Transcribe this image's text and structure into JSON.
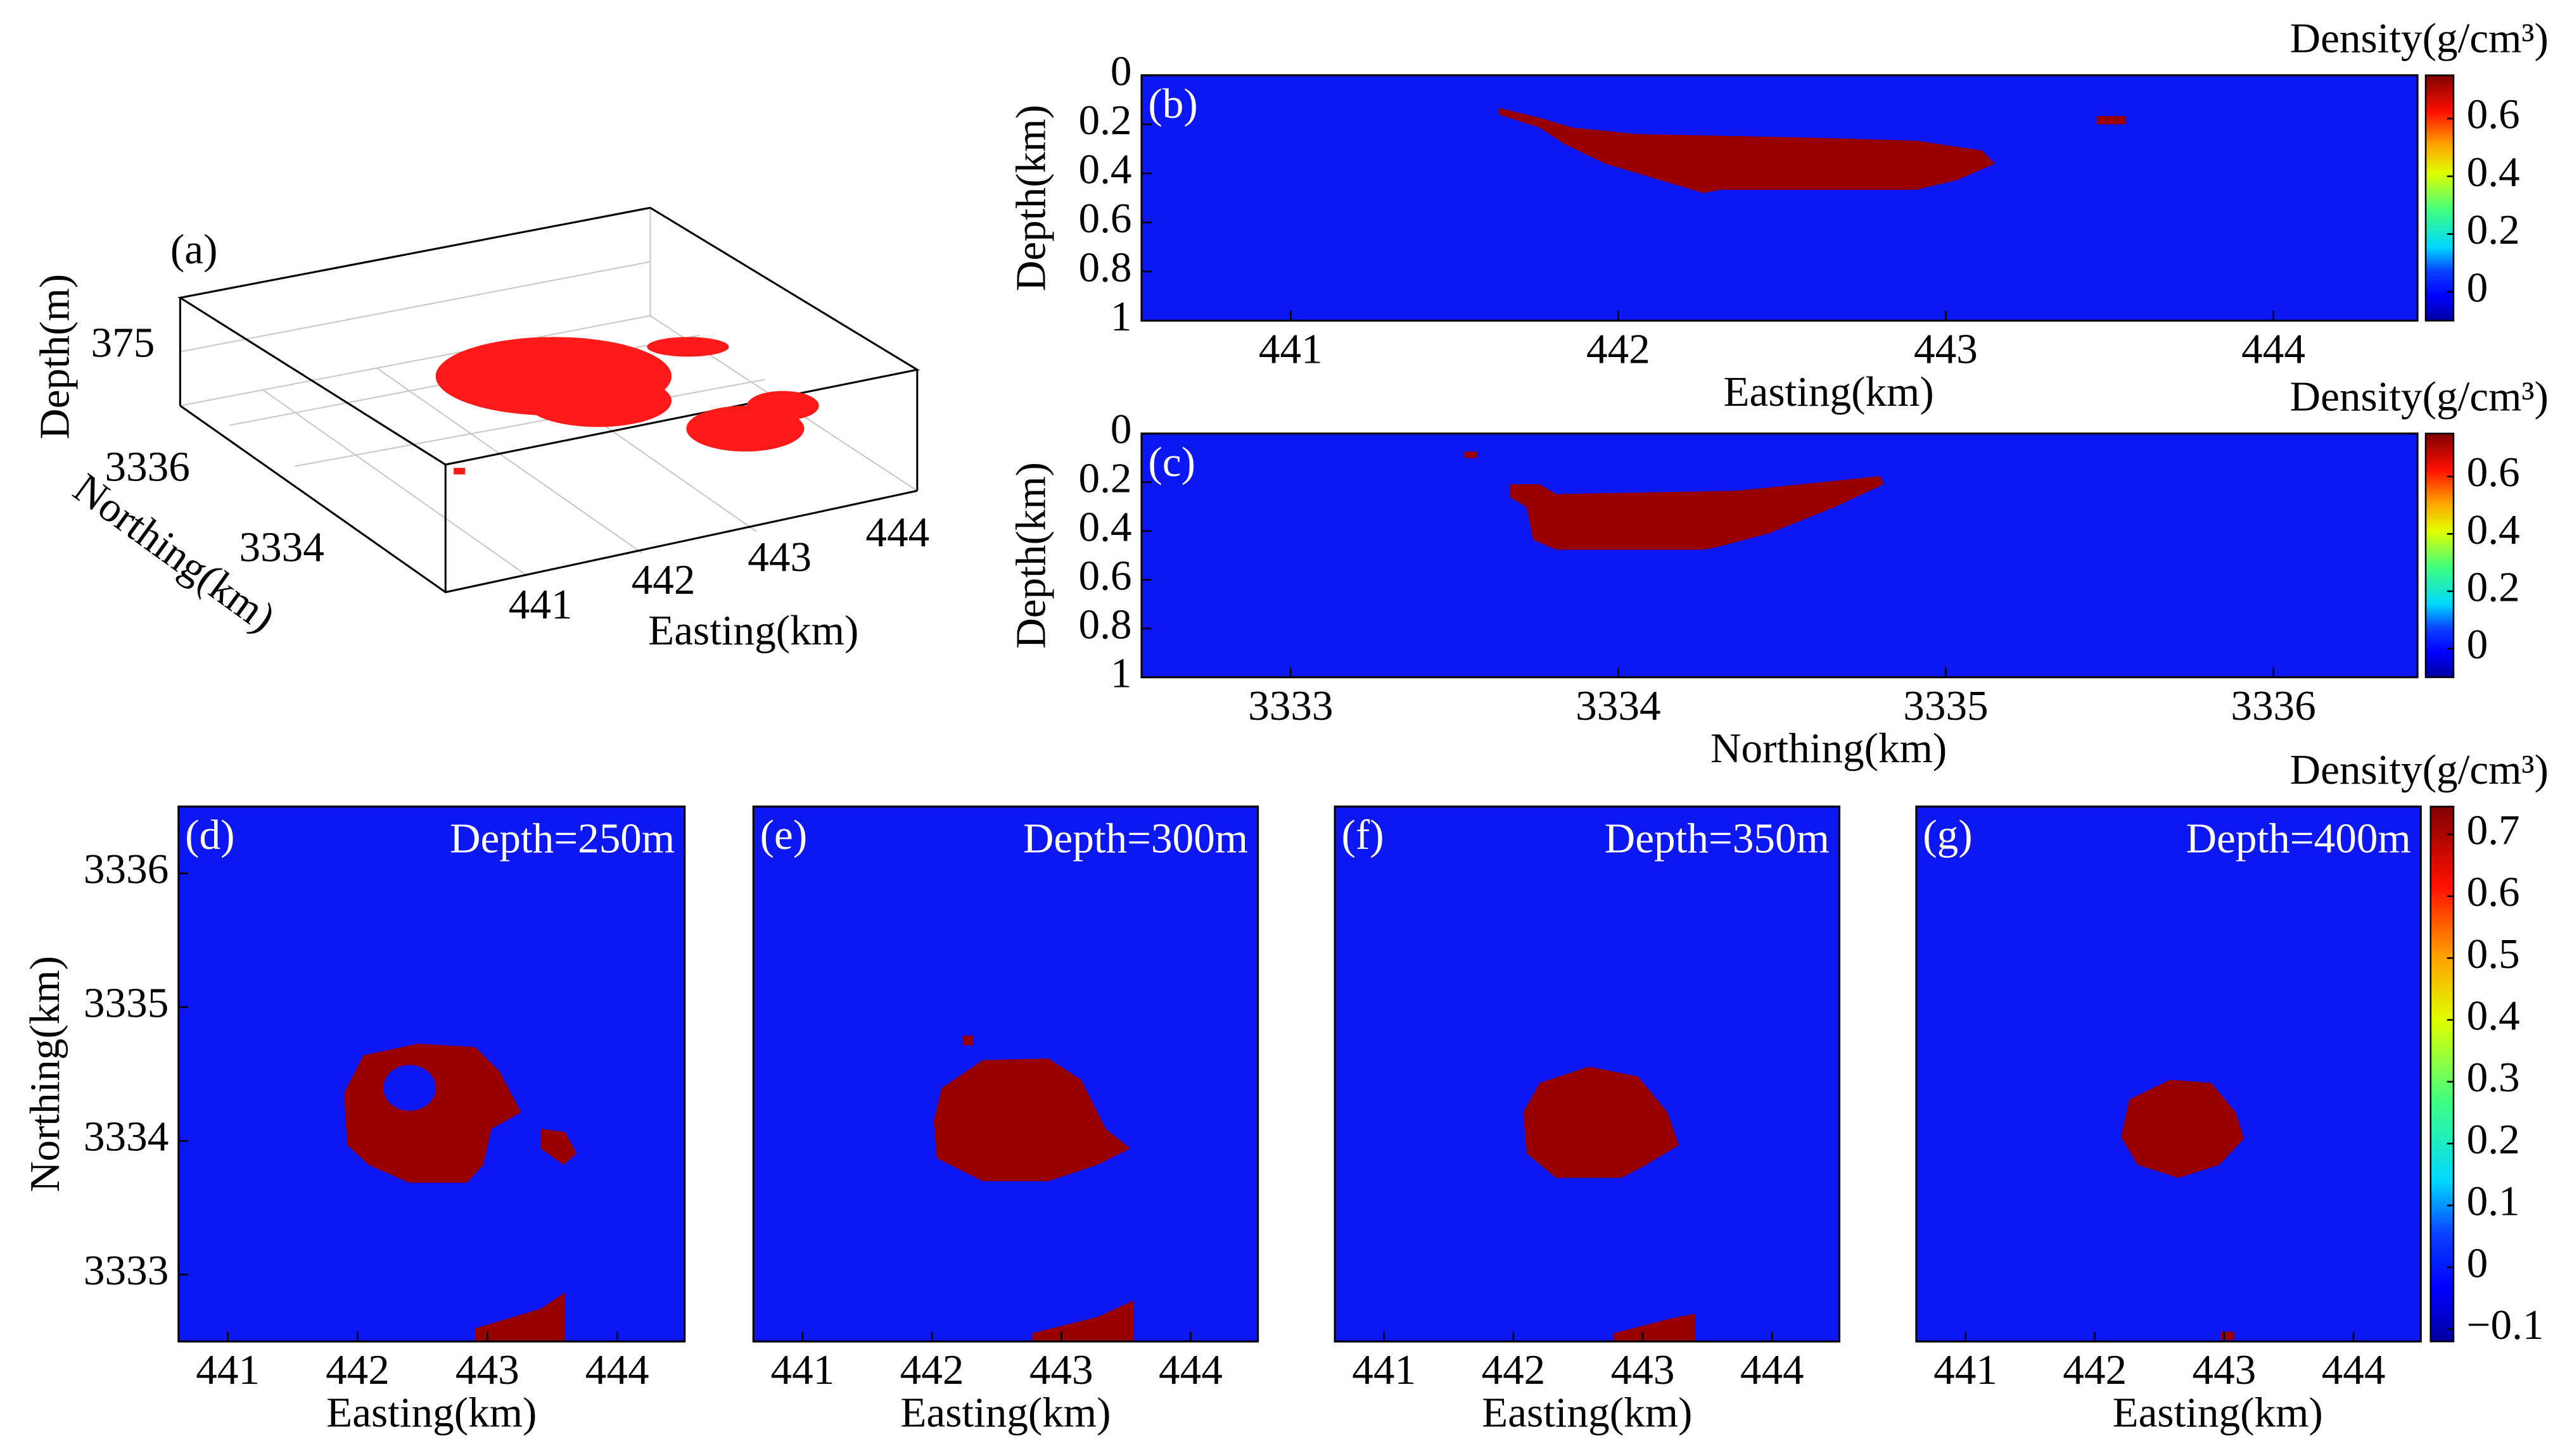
{
  "chart_data": [
    {
      "type": "scatter3d",
      "label": "(a)",
      "xlabel": "Easting(km)",
      "ylabel": "Northing(km)",
      "zlabel": "Depth(m)",
      "xticks": [
        441,
        442,
        443,
        444
      ],
      "yticks": [
        3334,
        3336
      ],
      "zticks": [
        375
      ],
      "color": "#ff1a1a"
    },
    {
      "type": "heatmap",
      "label": "(b)",
      "xlabel": "Easting(km)",
      "ylabel": "Depth(km)",
      "xlim": [
        440.545,
        444.44
      ],
      "xticks": [
        441,
        442,
        443,
        444
      ],
      "ylim": [
        0,
        1
      ],
      "yticks": [
        0,
        0.2,
        0.4,
        0.6,
        0.8,
        1
      ],
      "y_inverted": true,
      "colorbar": {
        "title": "Density(g/cm³)",
        "lim": [
          -0.1,
          0.75
        ],
        "ticks": [
          0,
          0.2,
          0.4,
          0.6
        ]
      }
    },
    {
      "type": "heatmap",
      "label": "(c)",
      "xlabel": "Northing(km)",
      "ylabel": "Depth(km)",
      "xlim": [
        3332.545,
        3336.44
      ],
      "xticks": [
        3333,
        3334,
        3335,
        3336
      ],
      "ylim": [
        0,
        1
      ],
      "yticks": [
        0,
        0.2,
        0.4,
        0.6,
        0.8,
        1
      ],
      "y_inverted": true,
      "colorbar": {
        "title": "Density(g/cm³)",
        "lim": [
          -0.1,
          0.75
        ],
        "ticks": [
          0,
          0.2,
          0.4,
          0.6
        ]
      }
    },
    {
      "type": "heatmap",
      "label": "(d)",
      "subtitle": "Depth=250m",
      "xlabel": "Easting(km)",
      "ylabel": "Northing(km)",
      "xlim": [
        440.62,
        444.52
      ],
      "xticks": [
        441,
        442,
        443,
        444
      ],
      "ylim": [
        3332.5,
        3336.5
      ],
      "yticks": [
        3333,
        3334,
        3335,
        3336
      ]
    },
    {
      "type": "heatmap",
      "label": "(e)",
      "subtitle": "Depth=300m",
      "xlabel": "Easting(km)",
      "xlim": [
        440.62,
        444.52
      ],
      "xticks": [
        441,
        442,
        443,
        444
      ]
    },
    {
      "type": "heatmap",
      "label": "(f)",
      "subtitle": "Depth=350m",
      "xlabel": "Easting(km)",
      "xlim": [
        440.62,
        444.52
      ],
      "xticks": [
        441,
        442,
        443,
        444
      ]
    },
    {
      "type": "heatmap",
      "label": "(g)",
      "subtitle": "Depth=400m",
      "xlabel": "Easting(km)",
      "xlim": [
        440.62,
        444.52
      ],
      "xticks": [
        441,
        442,
        443,
        444
      ],
      "colorbar": {
        "title": "Density(g/cm³)",
        "lim": [
          -0.12,
          0.745
        ],
        "ticks": [
          {
            "value": -0.1,
            "label": "−0.1"
          },
          0,
          0.1,
          0.2,
          0.3,
          0.4,
          0.5,
          0.6,
          0.7
        ]
      }
    }
  ]
}
